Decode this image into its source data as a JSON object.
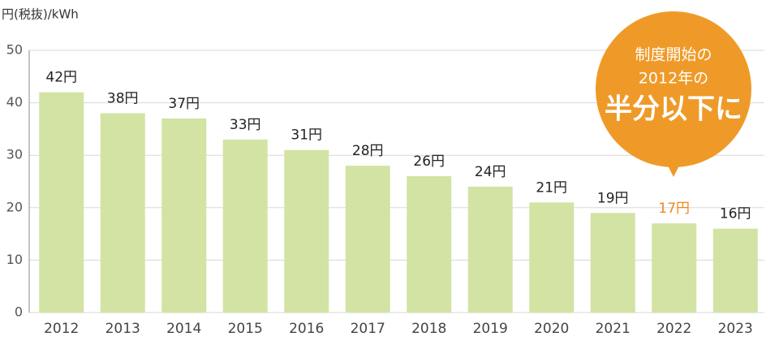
{
  "chart_data": {
    "type": "bar",
    "y_axis_label": "円(税抜)/kWh",
    "categories": [
      "2012",
      "2013",
      "2014",
      "2015",
      "2016",
      "2017",
      "2018",
      "2019",
      "2020",
      "2021",
      "2022",
      "2023"
    ],
    "values": [
      42,
      38,
      37,
      33,
      31,
      28,
      26,
      24,
      21,
      19,
      17,
      16
    ],
    "value_labels": [
      "42円",
      "38円",
      "37円",
      "33円",
      "31円",
      "28円",
      "26円",
      "24円",
      "21円",
      "19円",
      "17円",
      "16円"
    ],
    "color": "#d2e3a3",
    "value_label_color": "#222222",
    "highlight": {
      "category": "2022",
      "color": "#ee8a1c"
    },
    "annotation": {
      "lines": [
        "制度開始の",
        "2012年の"
      ],
      "emphasis": "半分以下に",
      "color": "#ef9a28"
    },
    "ylim": [
      0,
      50
    ],
    "yticks": [
      0,
      10,
      20,
      30,
      40,
      50
    ],
    "grid": true
  }
}
